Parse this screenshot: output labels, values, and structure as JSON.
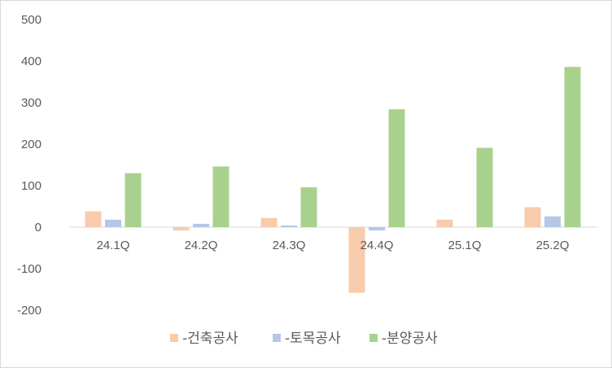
{
  "chart_data": {
    "type": "bar",
    "categories": [
      "24.1Q",
      "24.2Q",
      "24.3Q",
      "24.4Q",
      "25.1Q",
      "25.2Q"
    ],
    "series": [
      {
        "name": "-건축공사",
        "color": "#f8cbad",
        "values": [
          38,
          -8,
          22,
          -158,
          18,
          48
        ]
      },
      {
        "name": "-토목공사",
        "color": "#b4c7e7",
        "values": [
          18,
          8,
          4,
          -8,
          0,
          26
        ]
      },
      {
        "name": "-분양공사",
        "color": "#a9d18e",
        "values": [
          130,
          146,
          96,
          284,
          191,
          386
        ]
      }
    ],
    "yticks": [
      500,
      400,
      300,
      200,
      100,
      0,
      -100,
      -200
    ],
    "ylim": [
      -200,
      500
    ],
    "grid": false,
    "legend_position": "bottom"
  }
}
